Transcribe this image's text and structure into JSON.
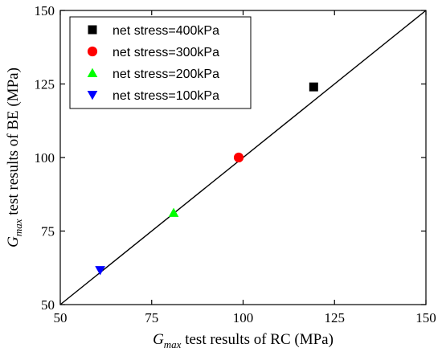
{
  "chart_data": {
    "type": "scatter",
    "title": "",
    "xlabel": {
      "symbol": "G",
      "subscript": "max",
      "text": " test results of RC (MPa)"
    },
    "ylabel": {
      "symbol": "G",
      "subscript": "max",
      "text": " test results of BE (MPa)"
    },
    "xlim": [
      50,
      150
    ],
    "ylim": [
      50,
      150
    ],
    "xticks": [
      50,
      75,
      100,
      125,
      150
    ],
    "yticks": [
      50,
      75,
      100,
      125,
      150
    ],
    "grid": false,
    "legend_position": "top-left",
    "reference_line": {
      "from": [
        50,
        50
      ],
      "to": [
        150,
        150
      ],
      "color": "#000000"
    },
    "series": [
      {
        "name": "net stress=400kPa",
        "marker": "square",
        "color": "#000000",
        "x": [
          119.3
        ],
        "y": [
          124.0
        ]
      },
      {
        "name": "net stress=300kPa",
        "marker": "circle",
        "color": "#ff0000",
        "x": [
          98.8
        ],
        "y": [
          100.0
        ]
      },
      {
        "name": "net stress=200kPa",
        "marker": "triangle-up",
        "color": "#00ff00",
        "x": [
          81.0
        ],
        "y": [
          81.2
        ]
      },
      {
        "name": "net stress=100kPa",
        "marker": "triangle-down",
        "color": "#0000ff",
        "x": [
          60.9
        ],
        "y": [
          61.7
        ]
      }
    ]
  }
}
